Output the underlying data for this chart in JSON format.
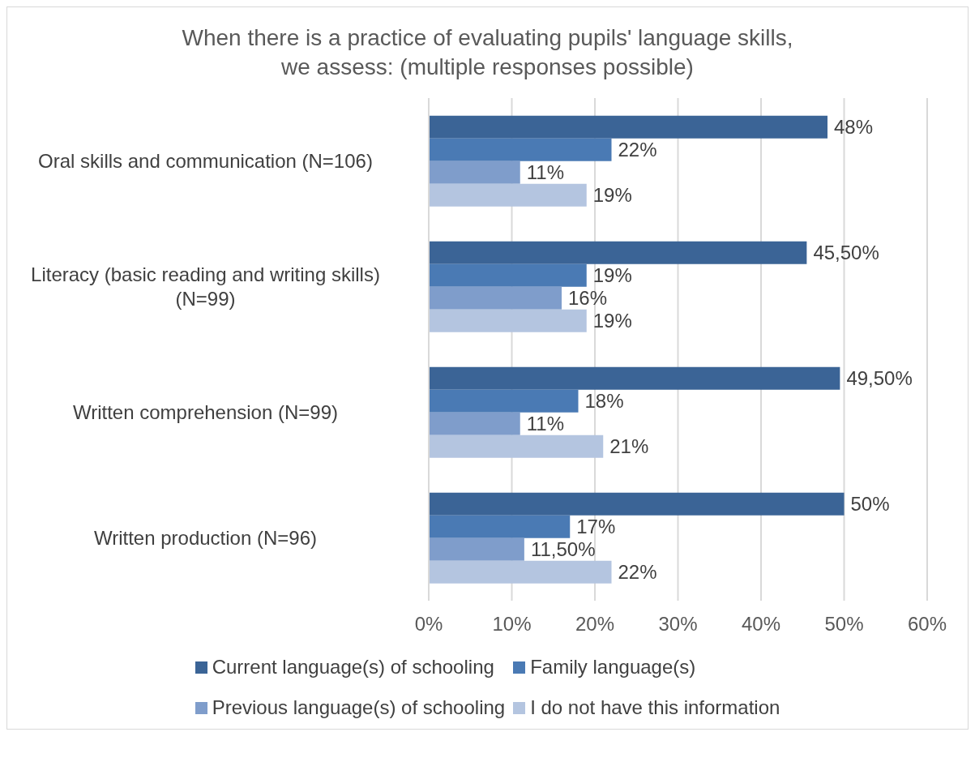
{
  "chart_data": {
    "type": "bar",
    "orientation": "horizontal",
    "title": "When there is a practice of evaluating pupils' language skills,\nwe assess: (multiple responses possible)",
    "categories": [
      "Oral skills and communication (N=106)",
      "Literacy (basic reading and writing skills) (N=99)",
      "Written comprehension (N=99)",
      "Written production (N=96)"
    ],
    "series": [
      {
        "name": "Current language(s) of schooling",
        "color": "#3b6496",
        "values": [
          48,
          45.5,
          49.5,
          50
        ],
        "value_labels": [
          "48%",
          "45,50%",
          "49,50%",
          "50%"
        ]
      },
      {
        "name": "Family language(s)",
        "color": "#4a7ab4",
        "values": [
          22,
          19,
          18,
          17
        ],
        "value_labels": [
          "22%",
          "19%",
          "18%",
          "17%"
        ]
      },
      {
        "name": "Previous language(s) of schooling",
        "color": "#7f9dcb",
        "values": [
          11,
          16,
          11,
          11.5
        ],
        "value_labels": [
          "11%",
          "16%",
          "11%",
          "11,50%"
        ]
      },
      {
        "name": "I do not have this information",
        "color": "#b4c5e0",
        "values": [
          19,
          19,
          21,
          22
        ],
        "value_labels": [
          "19%",
          "19%",
          "21%",
          "22%"
        ]
      }
    ],
    "xlim": [
      0,
      60
    ],
    "xticks": [
      {
        "value": 0,
        "label": "0%"
      },
      {
        "value": 10,
        "label": "10%"
      },
      {
        "value": 20,
        "label": "20%"
      },
      {
        "value": 30,
        "label": "30%"
      },
      {
        "value": 40,
        "label": "40%"
      },
      {
        "value": 50,
        "label": "50%"
      },
      {
        "value": 60,
        "label": "60%"
      }
    ],
    "grid": "x",
    "legend": "bottom"
  }
}
